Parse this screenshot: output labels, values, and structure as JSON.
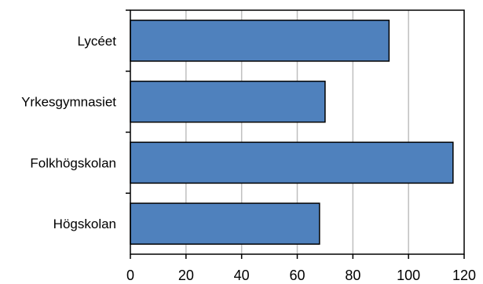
{
  "chart_data": {
    "type": "bar",
    "orientation": "horizontal",
    "categories": [
      "Lycéet",
      "Yrkesgymnasiet",
      "Folkhögskolan",
      "Högskolan"
    ],
    "values": [
      93,
      70,
      116,
      68
    ],
    "xlim": [
      0,
      120
    ],
    "xticks": [
      0,
      20,
      40,
      60,
      80,
      100,
      120
    ],
    "grid": "vertical",
    "colors": {
      "bar": "#4f81bd",
      "bar_edge": "#000000",
      "grid": "#bfbfbf"
    }
  }
}
